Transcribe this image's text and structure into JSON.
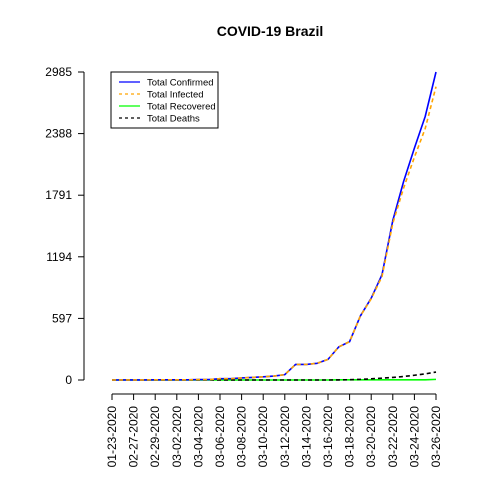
{
  "chart_data": {
    "type": "line",
    "title": "COVID-19 Brazil",
    "xlabel": "",
    "ylabel": "",
    "y_ticks": [
      0,
      597,
      1194,
      1791,
      2388,
      2985
    ],
    "ylim": [
      0,
      2985
    ],
    "x_tick_labels": [
      "01-23-2020",
      "02-27-2020",
      "02-29-2020",
      "03-02-2020",
      "03-04-2020",
      "03-06-2020",
      "03-08-2020",
      "03-10-2020",
      "03-12-2020",
      "03-14-2020",
      "03-16-2020",
      "03-18-2020",
      "03-20-2020",
      "03-22-2020",
      "03-24-2020",
      "03-26-2020"
    ],
    "grid": false,
    "legend_position": "top-left",
    "x": [
      "01-23-2020",
      "02-26-2020",
      "02-27-2020",
      "02-28-2020",
      "02-29-2020",
      "03-01-2020",
      "03-02-2020",
      "03-03-2020",
      "03-04-2020",
      "03-05-2020",
      "03-06-2020",
      "03-07-2020",
      "03-08-2020",
      "03-09-2020",
      "03-10-2020",
      "03-11-2020",
      "03-12-2020",
      "03-13-2020",
      "03-14-2020",
      "03-15-2020",
      "03-16-2020",
      "03-17-2020",
      "03-18-2020",
      "03-19-2020",
      "03-20-2020",
      "03-21-2020",
      "03-22-2020",
      "03-23-2020",
      "03-24-2020",
      "03-25-2020",
      "03-26-2020"
    ],
    "series": [
      {
        "name": "Total Confirmed",
        "color": "#0000ff",
        "dash": "solid",
        "values": [
          0,
          1,
          1,
          1,
          2,
          2,
          2,
          2,
          4,
          4,
          13,
          13,
          20,
          25,
          31,
          38,
          52,
          151,
          151,
          162,
          200,
          321,
          372,
          621,
          793,
          1021,
          1546,
          1924,
          2247,
          2554,
          2985
        ]
      },
      {
        "name": "Total Infected",
        "color": "#ffa500",
        "dash": "dashed",
        "values": [
          0,
          1,
          1,
          1,
          2,
          2,
          2,
          2,
          4,
          4,
          13,
          13,
          20,
          25,
          31,
          38,
          52,
          151,
          151,
          162,
          200,
          321,
          372,
          621,
          787,
          1003,
          1519,
          1860,
          2159,
          2437,
          2843
        ]
      },
      {
        "name": "Total Recovered",
        "color": "#00ff00",
        "dash": "solid",
        "values": [
          0,
          0,
          0,
          0,
          0,
          0,
          0,
          0,
          0,
          0,
          0,
          0,
          0,
          0,
          0,
          0,
          0,
          0,
          0,
          0,
          0,
          2,
          2,
          2,
          2,
          2,
          2,
          2,
          2,
          2,
          6
        ]
      },
      {
        "name": "Total Deaths",
        "color": "#000000",
        "dash": "dashed",
        "values": [
          0,
          0,
          0,
          0,
          0,
          0,
          0,
          0,
          0,
          0,
          0,
          0,
          0,
          0,
          0,
          0,
          0,
          0,
          0,
          0,
          0,
          1,
          3,
          6,
          11,
          18,
          25,
          34,
          46,
          59,
          77
        ]
      }
    ]
  }
}
